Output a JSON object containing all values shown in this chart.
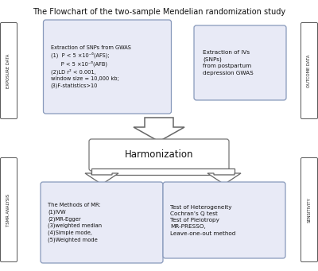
{
  "title": "The Flowchart of the two-sample Mendelian randomization study",
  "title_fontsize": 7.0,
  "bg_color": "#ffffff",
  "box_edge_blue": "#8899bb",
  "box_face_blue": "#e8eaf6",
  "box_edge_gray": "#777777",
  "box_face_white": "#ffffff",
  "arrow_color": "#666666",
  "text_color": "#111111",
  "exposure_data_label": "EXPOSURE DATA",
  "outcome_data_label": "OUTCOME DATA",
  "tsmr_label": "TSMR ANALYSIS",
  "sensitivity_label": "SENSITIVITY",
  "box1_text": "Extraction of SNPs from GWAS\n(1)  P < 5 ×10⁻⁶(AFS);\n      P < 5 ×10⁻⁶(AFB)\n(2)LD r² < 0.001,\nwindow size = 10,000 kb;\n(3)F-statistics>10",
  "box2_text": "Extraction of IVs\n(SNPs)\nfrom postpartum\ndepression GWAS",
  "box3_text": "Harmonization",
  "box4_text": "The Methods of MR:\n(1)IVW\n(2)MR-Egger\n(3)weighted median\n(4)Simple mode,\n(5)Weighted mode",
  "box5_text": "Test of Heterogeneity\nCochran’s Q test\nTest of Pleiotropy\nMR-PRESSO,\nLeave-one-out method",
  "figw": 4.0,
  "figh": 3.41,
  "dpi": 100
}
